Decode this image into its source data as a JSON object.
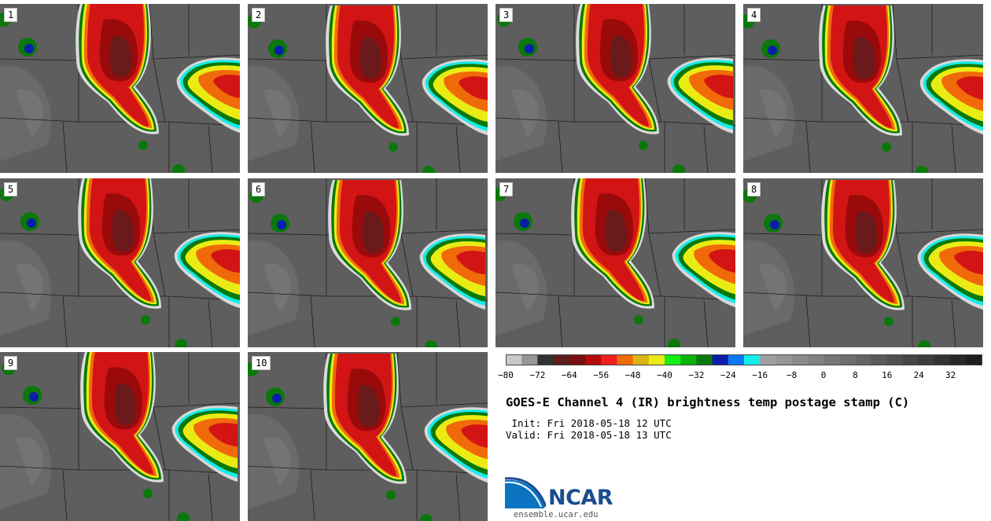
{
  "panels": [
    {
      "label": "1"
    },
    {
      "label": "2"
    },
    {
      "label": "3"
    },
    {
      "label": "4"
    },
    {
      "label": "5"
    },
    {
      "label": "6"
    },
    {
      "label": "7"
    },
    {
      "label": "8"
    },
    {
      "label": "9"
    },
    {
      "label": "10"
    }
  ],
  "colorbar": {
    "colors": [
      "#c8c8c8",
      "#969696",
      "#323232",
      "#5a1e1e",
      "#781010",
      "#b40a0a",
      "#f01e1e",
      "#f06a0a",
      "#dcb414",
      "#ebeb14",
      "#14f014",
      "#0ab40a",
      "#0a780a",
      "#0a1eaa",
      "#0a78f0",
      "#14ebeb",
      "#a0a0a0",
      "#969696",
      "#8c8c8c",
      "#828282",
      "#787878",
      "#6e6e6e",
      "#646464",
      "#5a5a5a",
      "#505050",
      "#464646",
      "#3c3c3c",
      "#323232",
      "#282828",
      "#1e1e1e"
    ],
    "tick_labels": [
      "−80",
      "−72",
      "−64",
      "−56",
      "−48",
      "−40",
      "−32",
      "−24",
      "−16",
      "−8",
      "0",
      "8",
      "16",
      "24",
      "32"
    ]
  },
  "title": "GOES-E Channel 4 (IR) brightness temp postage stamp (C)",
  "init": " Init: Fri 2018-05-18 12 UTC",
  "valid": "Valid: Fri 2018-05-18 13 UTC",
  "logo": {
    "text": "NCAR",
    "url": "ensemble.ucar.edu"
  }
}
